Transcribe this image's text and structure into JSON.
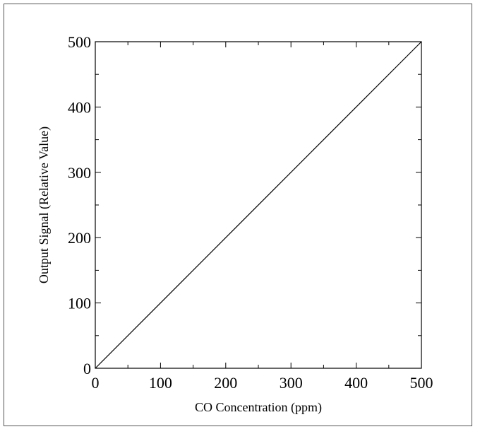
{
  "chart_data": {
    "type": "line",
    "title": "",
    "xlabel": "CO Concentration (ppm)",
    "ylabel": "Output Signal (Relative Value)",
    "xlim": [
      0,
      500
    ],
    "ylim": [
      0,
      500
    ],
    "x_major_ticks": [
      0,
      100,
      200,
      300,
      400,
      500
    ],
    "x_tick_labels": [
      "0",
      "100",
      "200",
      "300",
      "400",
      "500"
    ],
    "x_minor_ticks": [
      50,
      150,
      250,
      350,
      450
    ],
    "y_major_ticks": [
      0,
      100,
      200,
      300,
      400,
      500
    ],
    "y_tick_labels": [
      "0",
      "100",
      "200",
      "300",
      "400",
      "500"
    ],
    "y_minor_ticks": [
      50,
      150,
      250,
      350,
      450
    ],
    "grid": false,
    "series": [
      {
        "x": [
          0,
          500
        ],
        "y": [
          0,
          500
        ]
      }
    ]
  }
}
